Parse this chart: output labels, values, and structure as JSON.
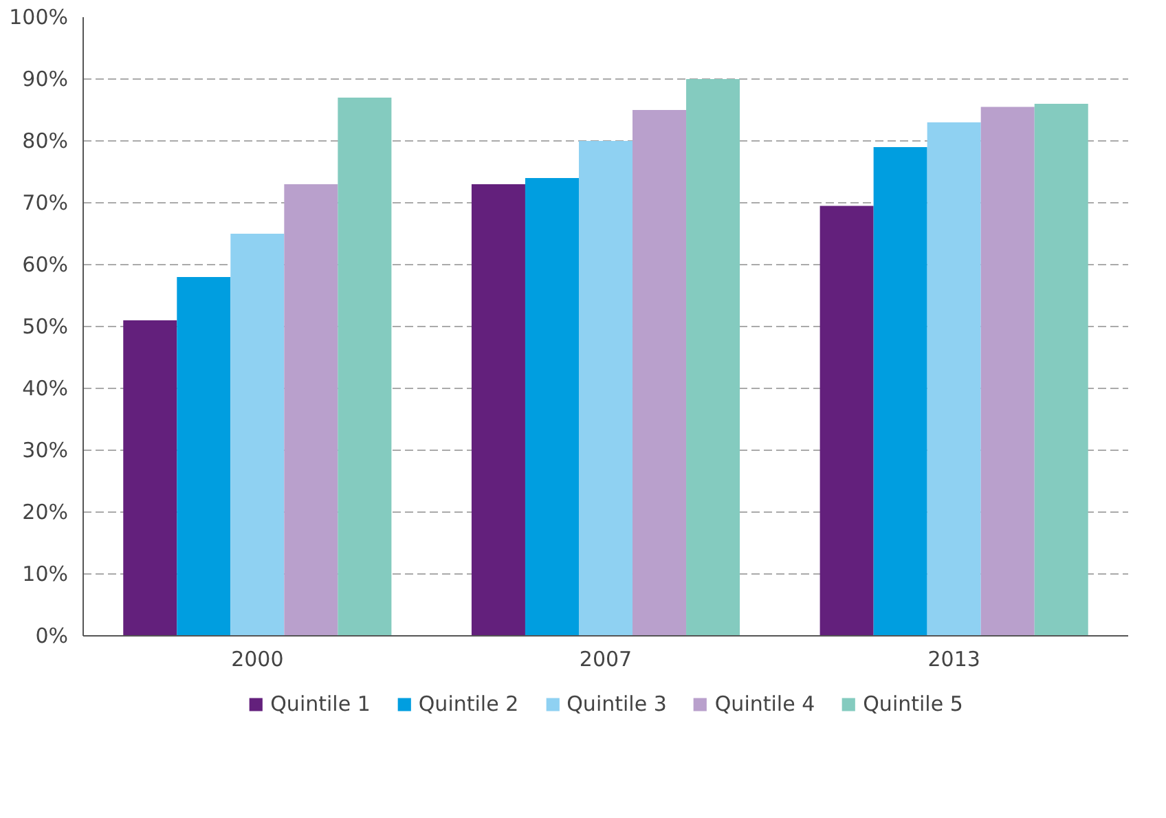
{
  "chart_data": {
    "type": "bar",
    "categories": [
      "2000",
      "2007",
      "2013"
    ],
    "series": [
      {
        "name": "Quintile 1",
        "color": "#63207c",
        "values": [
          51,
          73,
          69.5
        ]
      },
      {
        "name": "Quintile 2",
        "color": "#009ee0",
        "values": [
          58,
          74,
          79
        ]
      },
      {
        "name": "Quintile 3",
        "color": "#8fd1f2",
        "values": [
          65,
          80,
          83
        ]
      },
      {
        "name": "Quintile 4",
        "color": "#b9a0cc",
        "values": [
          73,
          85,
          85.5
        ]
      },
      {
        "name": "Quintile 5",
        "color": "#84cbbf",
        "values": [
          87,
          90,
          86
        ]
      }
    ],
    "ylim": [
      0,
      100
    ],
    "yticks": [
      {
        "value": 0,
        "label": "0%"
      },
      {
        "value": 10,
        "label": "10%"
      },
      {
        "value": 20,
        "label": "20%"
      },
      {
        "value": 30,
        "label": "30%"
      },
      {
        "value": 40,
        "label": "40%"
      },
      {
        "value": 50,
        "label": "50%"
      },
      {
        "value": 60,
        "label": "60%"
      },
      {
        "value": 70,
        "label": "70%"
      },
      {
        "value": 80,
        "label": "80%"
      },
      {
        "value": 90,
        "label": "90%"
      },
      {
        "value": 100,
        "label": "100%"
      }
    ],
    "grid": "y",
    "legend": "bottom"
  }
}
